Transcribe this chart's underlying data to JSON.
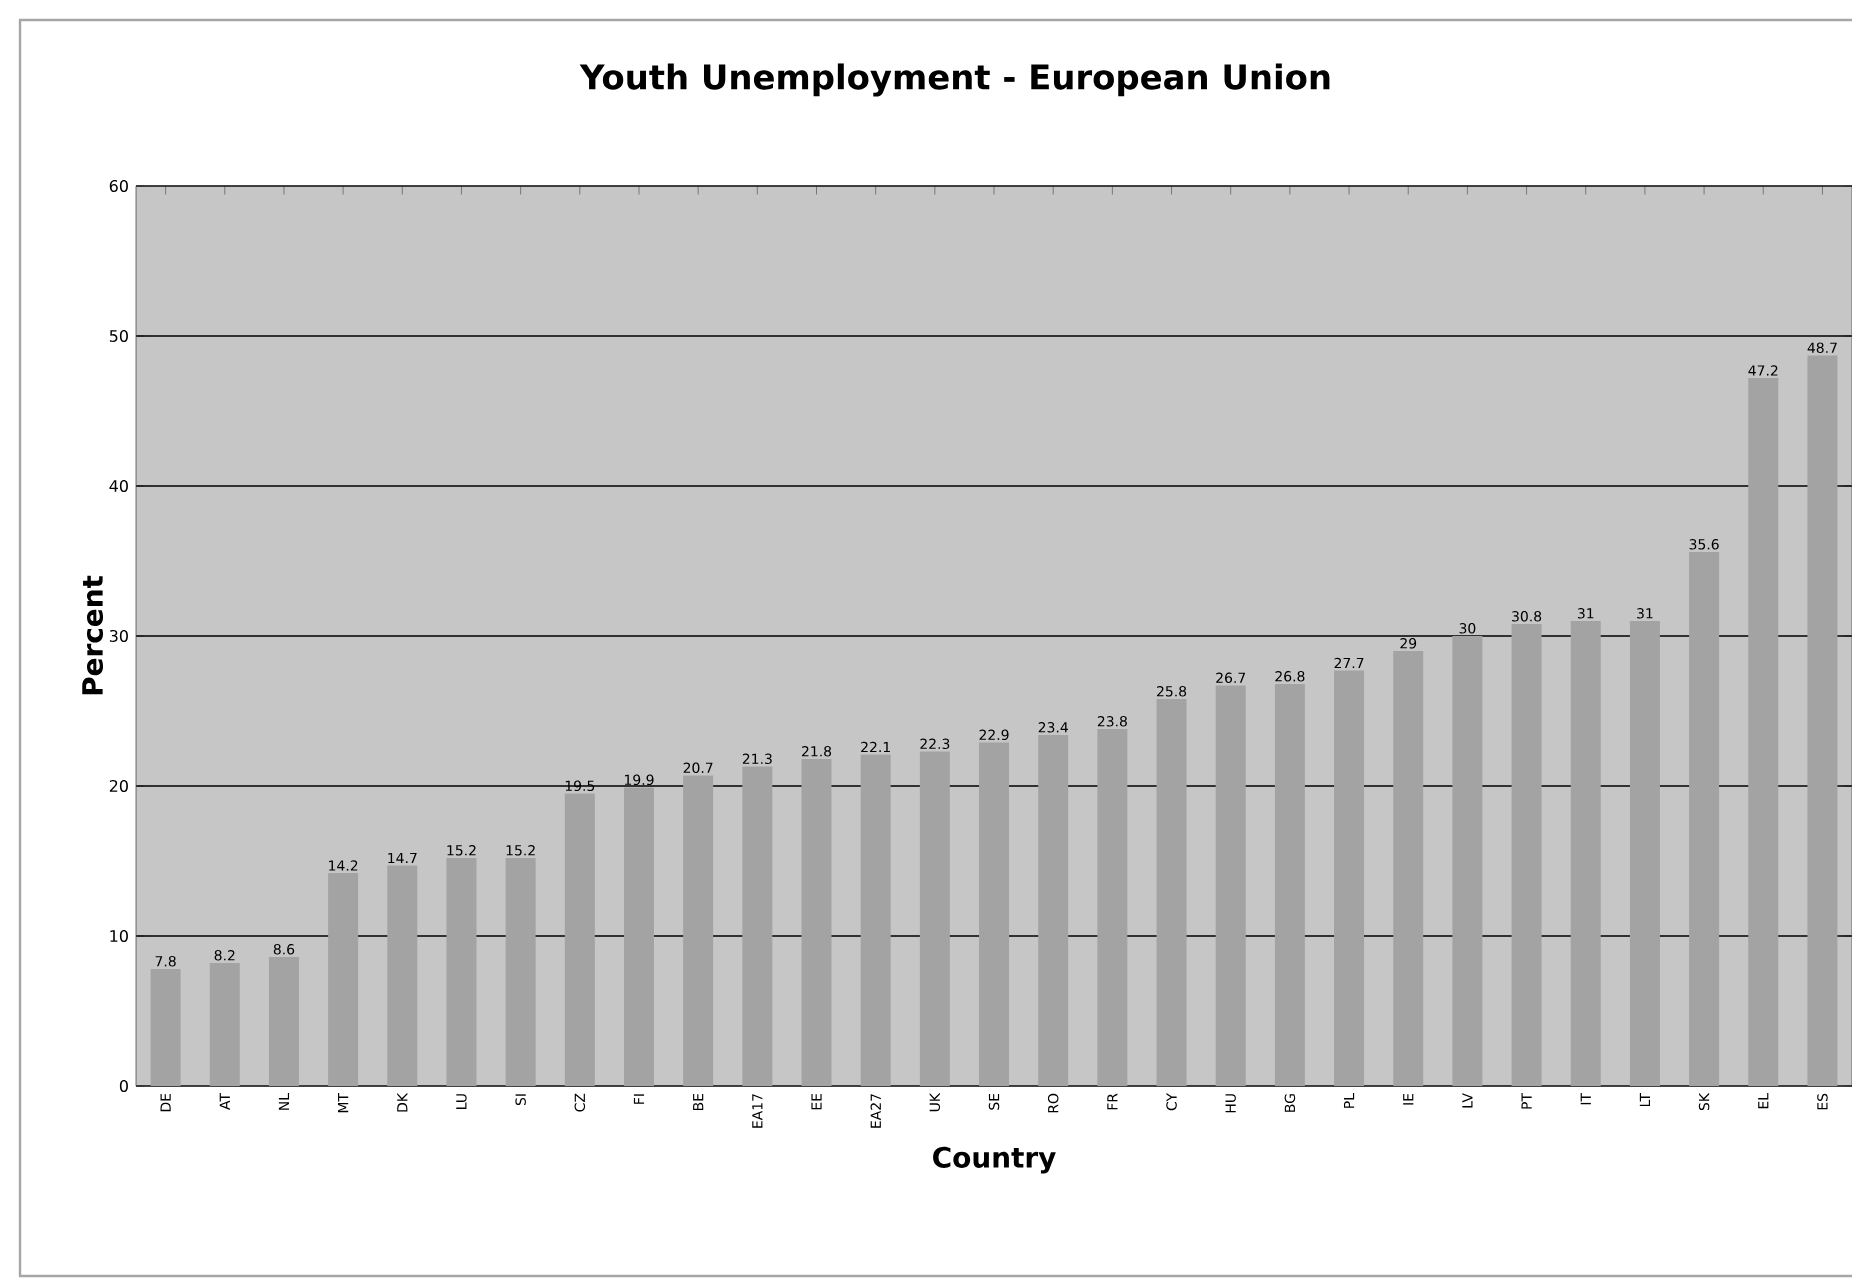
{
  "chart_data": {
    "type": "bar",
    "title": "Youth Unemployment - European Union",
    "xlabel": "Country",
    "ylabel": "Percent",
    "categories": [
      "DE",
      "AT",
      "NL",
      "MT",
      "DK",
      "LU",
      "SI",
      "CZ",
      "FI",
      "BE",
      "EA17",
      "EE",
      "EA27",
      "UK",
      "SE",
      "RO",
      "FR",
      "CY",
      "HU",
      "BG",
      "PL",
      "IE",
      "LV",
      "PT",
      "IT",
      "LT",
      "SK",
      "EL",
      "ES"
    ],
    "values": [
      7.8,
      8.2,
      8.6,
      14.2,
      14.7,
      15.2,
      15.2,
      19.5,
      19.9,
      20.7,
      21.3,
      21.8,
      22.1,
      22.3,
      22.9,
      23.4,
      23.8,
      25.8,
      26.7,
      26.8,
      27.7,
      29,
      30,
      30.8,
      31,
      31,
      35.6,
      47.2,
      48.7
    ],
    "color": "#a3a3a3",
    "ylim": [
      0,
      60
    ],
    "yticks": [
      0,
      10,
      20,
      30,
      40,
      50,
      60
    ],
    "grid": "y",
    "data_labels": true
  }
}
